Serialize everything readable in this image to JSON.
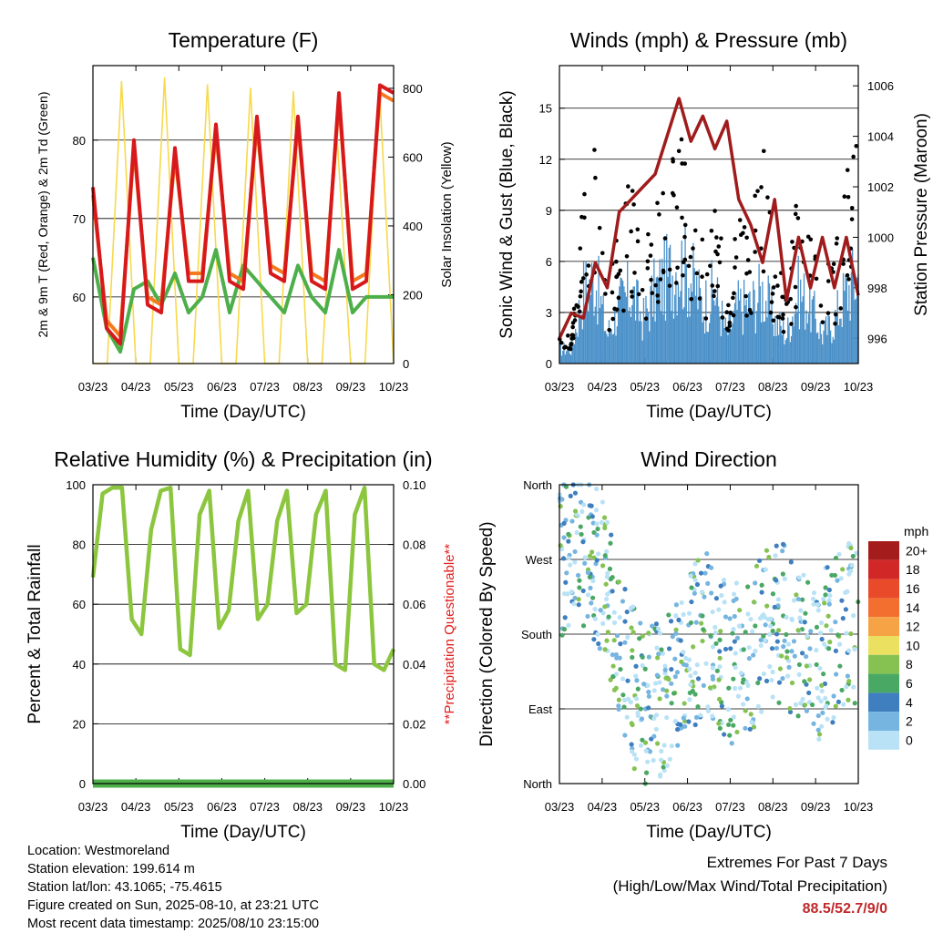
{
  "chart_data": [
    {
      "type": "line",
      "title": "Temperature (F)",
      "xlabel": "Time (Day/UTC)",
      "ylabel": "2m & 9m T (Red, Orange) & 2m Td (Green)",
      "ylabel_right": "Solar Insolation (Yellow)",
      "x_ticks": [
        "03/23",
        "04/23",
        "05/23",
        "06/23",
        "07/23",
        "08/23",
        "09/23",
        "10/23"
      ],
      "ylim": [
        51.5,
        89.5
      ],
      "y_ticks": [
        60,
        70,
        80
      ],
      "ylim_right": [
        0,
        866
      ],
      "y_ticks_right": [
        0,
        200,
        400,
        600,
        800
      ],
      "grid": true,
      "series": [
        {
          "color": "#d7191c",
          "values": [
            74,
            56,
            54,
            80,
            59,
            58,
            79,
            62,
            62,
            82,
            62,
            61,
            83,
            63,
            62,
            83,
            62,
            61,
            86,
            61,
            62,
            87,
            86
          ]
        },
        {
          "color": "#f47a20",
          "values": [
            73,
            57,
            55,
            79,
            60,
            59,
            78,
            63,
            63,
            81,
            63,
            62,
            82,
            64,
            63,
            82,
            63,
            62,
            85,
            62,
            63,
            86,
            85
          ]
        },
        {
          "color": "#4daf4a",
          "values": [
            65,
            56,
            53,
            61,
            62,
            59,
            63,
            58,
            60,
            66,
            58,
            64,
            62,
            60,
            58,
            64,
            60,
            58,
            66,
            58,
            60,
            60,
            60
          ]
        },
        {
          "color": "#f7d94c",
          "axis": "right",
          "values": [
            0,
            0,
            820,
            0,
            0,
            830,
            0,
            0,
            810,
            0,
            0,
            800,
            0,
            0,
            790,
            0,
            0,
            700,
            0,
            0,
            810,
            0
          ]
        }
      ]
    },
    {
      "type": "scatter",
      "title": "Winds (mph) & Pressure (mb)",
      "xlabel": "Time (Day/UTC)",
      "ylabel": "Sonic Wind & Gust (Blue, Black)",
      "ylabel_right": "Station Pressure (Maroon)",
      "x_ticks": [
        "03/23",
        "04/23",
        "05/23",
        "06/23",
        "07/23",
        "08/23",
        "09/23",
        "10/23"
      ],
      "ylim": [
        0,
        17.5
      ],
      "y_ticks": [
        0,
        3,
        6,
        9,
        12,
        15
      ],
      "ylim_right": [
        995,
        1006.8
      ],
      "y_ticks_right": [
        996,
        998,
        1000,
        1002,
        1004,
        1006
      ],
      "grid": true,
      "series": [
        {
          "color": "#000000",
          "values": [
            2.5,
            2,
            9,
            12,
            4,
            8,
            10,
            6,
            9,
            11,
            13,
            10,
            7,
            9,
            5,
            8,
            7,
            13,
            6,
            4,
            10,
            9,
            5,
            6,
            10,
            15
          ]
        },
        {
          "color": "#4a90c8",
          "values": [
            1,
            1,
            5,
            6,
            2,
            4,
            5,
            3,
            5,
            6,
            7,
            6,
            4,
            5,
            2,
            4,
            4,
            5,
            3,
            2,
            5,
            4,
            2,
            3,
            5,
            6
          ]
        },
        {
          "color": "#a01c1c",
          "axis": "right",
          "values": [
            996,
            997,
            996.8,
            999,
            998,
            1001,
            1001.5,
            1002,
            1002.5,
            1004,
            1005.5,
            1003.8,
            1004.8,
            1003.5,
            1004.6,
            1001.5,
            1000.5,
            999,
            1001.5,
            997.5,
            1000,
            998,
            1000,
            998,
            1000,
            997.7
          ]
        }
      ]
    },
    {
      "type": "line",
      "title": "Relative Humidity (%) & Precipitation (in)",
      "xlabel": "Time (Day/UTC)",
      "ylabel": "Percent & Total Rainfall",
      "ylabel_right": "**Precipitation Questionable**",
      "x_ticks": [
        "03/23",
        "04/23",
        "05/23",
        "06/23",
        "07/23",
        "08/23",
        "09/23",
        "10/23"
      ],
      "ylim": [
        0,
        100
      ],
      "y_ticks": [
        0,
        20,
        40,
        60,
        80,
        100
      ],
      "ylim_right": [
        0,
        0.1
      ],
      "y_ticks_right": [
        "0.00",
        "0.02",
        "0.04",
        "0.06",
        "0.08",
        "0.10"
      ],
      "grid": true,
      "series": [
        {
          "color": "#8cc63f",
          "values": [
            69,
            97,
            99,
            99,
            55,
            50,
            85,
            98,
            99,
            45,
            43,
            90,
            98,
            52,
            58,
            88,
            98,
            55,
            60,
            88,
            98,
            57,
            60,
            90,
            98,
            40,
            38,
            90,
            99,
            40,
            38,
            45
          ]
        },
        {
          "color": "#4daf4a",
          "values": [
            0,
            0
          ]
        }
      ]
    },
    {
      "type": "scatter",
      "title": "Wind Direction",
      "xlabel": "Time (Day/UTC)",
      "ylabel": "Direction (Colored By Speed)",
      "x_ticks": [
        "03/23",
        "04/23",
        "05/23",
        "06/23",
        "07/23",
        "08/23",
        "09/23",
        "10/23"
      ],
      "y_ticks": [
        "North",
        "West",
        "South",
        "East",
        "North"
      ],
      "legend_title": "mph",
      "legend_labels": [
        "20+",
        "18",
        "16",
        "14",
        "12",
        "10",
        "8",
        "6",
        "4",
        "2",
        "0"
      ],
      "legend_colors": [
        "#a51c1c",
        "#d22727",
        "#e84a2a",
        "#f26f2f",
        "#f6a346",
        "#ece060",
        "#85c252",
        "#4aa865",
        "#3f7fbf",
        "#76b5e0",
        "#b9e2f6"
      ],
      "legend_placement": "right",
      "grid": true
    }
  ],
  "info": {
    "location": "Location: Westmoreland",
    "elevation": "Station elevation: 199.614 m",
    "latlon": "Station lat/lon: 43.1065; -75.4615",
    "created": "Figure created on Sun, 2025-08-10, at 23:21 UTC",
    "recent": "Most recent data timestamp: 2025/08/10 23:15:00"
  },
  "extremes": {
    "title": "Extremes For Past 7 Days",
    "subtitle": "(High/Low/Max Wind/Total Precipitation)",
    "values": "88.5/52.7/9/0"
  }
}
